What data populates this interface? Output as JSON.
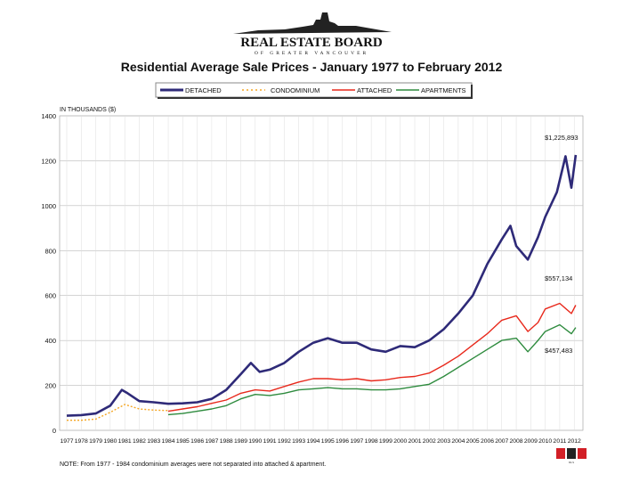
{
  "logo": {
    "name": "REAL ESTATE BOARD",
    "sub": "OF GREATER VANCOUVER"
  },
  "note": "NOTE:  From 1977 - 1984 condominium averages were not separated into attached & apartment.",
  "mls_logo": "MLS",
  "chart_data": {
    "type": "line",
    "title": "Residential Average Sale Prices  -  January 1977 to February 2012",
    "ylabel": "IN THOUSANDS ($)",
    "xlabel": "",
    "ylim": [
      0,
      1400
    ],
    "xlim": [
      1977,
      2012.1
    ],
    "yticks": [
      0,
      200,
      400,
      600,
      800,
      1000,
      1200,
      1400
    ],
    "xticks": [
      1977,
      1978,
      1979,
      1980,
      1981,
      1982,
      1983,
      1984,
      1985,
      1986,
      1987,
      1988,
      1989,
      1990,
      1991,
      1992,
      1993,
      1994,
      1995,
      1996,
      1997,
      1998,
      1999,
      2000,
      2001,
      2002,
      2003,
      2004,
      2005,
      2006,
      2007,
      2008,
      2009,
      2010,
      2011,
      2012
    ],
    "grid": true,
    "legend": "top",
    "series": [
      {
        "name": "DETACHED",
        "color": "#2e2a78",
        "style": "solid",
        "x": [
          1977,
          1978,
          1979,
          1980,
          1980.8,
          1981.2,
          1982,
          1983,
          1984,
          1985,
          1986,
          1987,
          1988,
          1989,
          1989.7,
          1990.3,
          1991,
          1992,
          1993,
          1994,
          1995,
          1996,
          1997,
          1998,
          1999,
          2000,
          2001,
          2002,
          2003,
          2004,
          2005,
          2006,
          2007,
          2007.6,
          2008,
          2008.8,
          2009.5,
          2010,
          2010.8,
          2011.4,
          2011.8,
          2012.1
        ],
        "values": [
          65,
          68,
          75,
          110,
          180,
          165,
          130,
          125,
          118,
          120,
          125,
          140,
          180,
          250,
          300,
          260,
          270,
          300,
          350,
          390,
          410,
          390,
          390,
          360,
          350,
          375,
          370,
          400,
          450,
          520,
          600,
          740,
          850,
          910,
          820,
          760,
          860,
          950,
          1060,
          1220,
          1080,
          1225.893
        ]
      },
      {
        "name": "CONDOMINIUM",
        "color": "#f5a623",
        "style": "dotted",
        "x": [
          1977,
          1978,
          1979,
          1980,
          1981,
          1982,
          1983,
          1984
        ],
        "values": [
          45,
          45,
          50,
          80,
          115,
          95,
          90,
          88
        ]
      },
      {
        "name": "ATTACHED",
        "color": "#e8291c",
        "style": "solid",
        "x": [
          1984,
          1985,
          1986,
          1987,
          1988,
          1989,
          1990,
          1991,
          1992,
          1993,
          1994,
          1995,
          1996,
          1997,
          1998,
          1999,
          2000,
          2001,
          2002,
          2003,
          2004,
          2005,
          2006,
          2007,
          2008,
          2008.8,
          2009.5,
          2010,
          2011,
          2011.8,
          2012.1
        ],
        "values": [
          85,
          95,
          105,
          120,
          135,
          165,
          180,
          175,
          195,
          215,
          230,
          230,
          225,
          230,
          220,
          225,
          235,
          240,
          255,
          290,
          330,
          380,
          430,
          490,
          510,
          440,
          480,
          540,
          565,
          520,
          557.134
        ]
      },
      {
        "name": "APARTMENTS",
        "color": "#2e8b3e",
        "style": "solid",
        "x": [
          1984,
          1985,
          1986,
          1987,
          1988,
          1989,
          1990,
          1991,
          1992,
          1993,
          1994,
          1995,
          1996,
          1997,
          1998,
          1999,
          2000,
          2001,
          2002,
          2003,
          2004,
          2005,
          2006,
          2007,
          2008,
          2008.8,
          2009.5,
          2010,
          2011,
          2011.8,
          2012.1
        ],
        "values": [
          70,
          75,
          85,
          95,
          110,
          140,
          160,
          155,
          165,
          180,
          185,
          190,
          185,
          185,
          180,
          180,
          185,
          195,
          205,
          240,
          280,
          320,
          360,
          400,
          410,
          350,
          400,
          440,
          470,
          430,
          457.483
        ]
      }
    ],
    "annotations": [
      "$1,225,893",
      "$557,134",
      "$457,483"
    ]
  }
}
